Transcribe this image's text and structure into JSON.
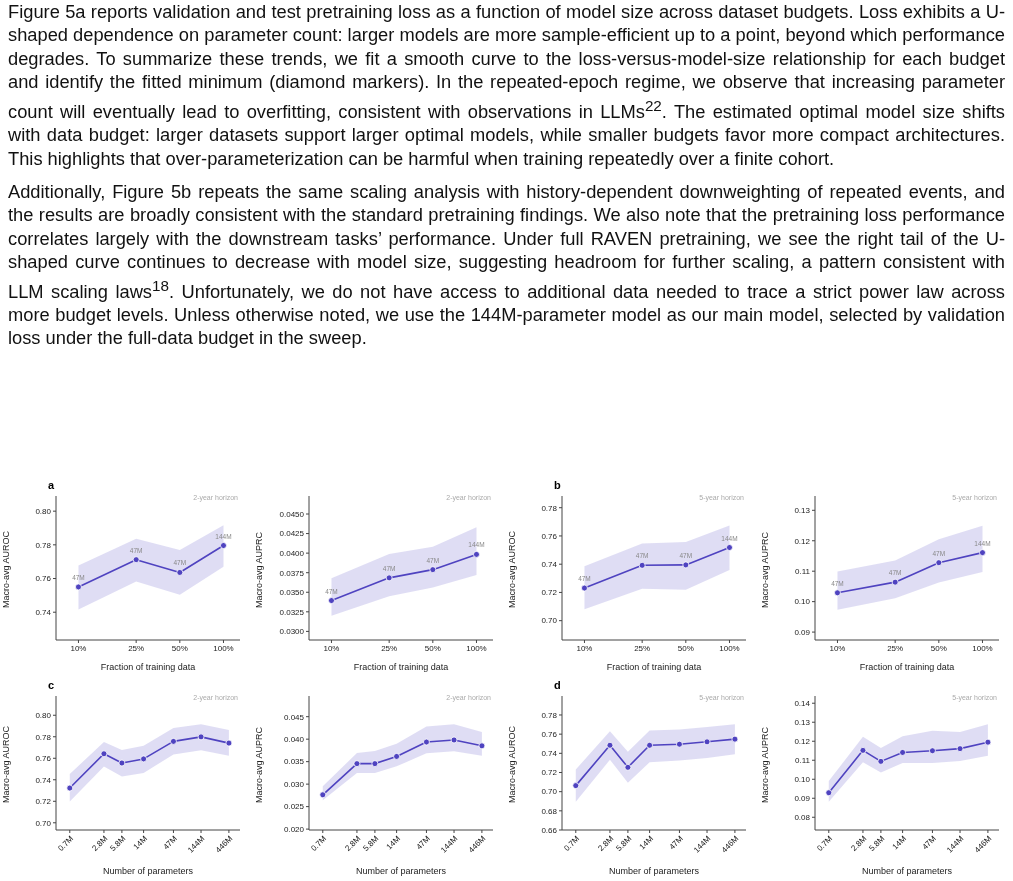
{
  "chart_data": [
    {
      "type": "other",
      "annotations": [
        "Figure 5a reports validation and test pretraining loss as a function of model size across dataset budgets. Loss exhibits a U-shaped dependence on parameter count: larger models are more sample-efficient up to a point, beyond which performance degrades. To summarize these trends, we fit a smooth curve to the loss-versus-model-size relationship for each budget and identify the fitted minimum (diamond markers). In the repeated-epoch regime, we observe that increasing parameter count will eventually lead to overfitting, consistent with observations in LLMs$^{22}$. The estimated optimal model size shifts with data budget: larger datasets support larger optimal models, while smaller budgets favor more compact architectures. This highlights that over-parameterization can be harmful when training repeatedly over a finite cohort.",
        "Additionally, Figure 5b repeats the same scaling analysis with history-dependent downweighting of repeated events, and the results are broadly consistent with the standard pretraining findings. We also note that the pretraining loss performance correlates largely with the downstream tasks’ performance. Under full RAVEN pretraining, we see the right tail of the U-shaped curve continues to decrease with model size, suggesting headroom for further scaling, a pattern consistent with LLM scaling laws$^{18}$. Unfortunately, we do not have access to additional data needed to trace a strict power law across more budget levels. Unless otherwise noted, we use the 144M-parameter model as our main model, selected by validation loss under the full-data budget in the sweep."
      ]
    },
    {
      "type": "line",
      "title": "a",
      "xlabel": "Fraction of training data",
      "ylabel": "Macro-avg AUROC",
      "log": "x",
      "marker": "circle",
      "line_style": "solid",
      "x": [
        10,
        25,
        50,
        100
      ],
      "xlim": [
        7,
        130
      ],
      "xticks": [
        {
          "value": 10,
          "label": "10%"
        },
        {
          "value": 25,
          "label": "25%"
        },
        {
          "value": 50,
          "label": "50%"
        },
        {
          "value": 100,
          "label": "100%"
        }
      ],
      "ylim": [
        0.7235,
        0.809
      ],
      "yticks": [
        {
          "value": 0.74,
          "label": "0.74"
        },
        {
          "value": 0.76,
          "label": "0.76"
        },
        {
          "value": 0.78,
          "label": "0.78"
        },
        {
          "value": 0.8,
          "label": "0.80"
        }
      ],
      "series": [
        {
          "color": "#4f43c0",
          "values": [
            0.755,
            0.7712,
            0.7636,
            0.7796
          ],
          "lower": [
            0.7416,
            0.7582,
            0.7504,
            0.767
          ],
          "upper": [
            0.7678,
            0.7836,
            0.777,
            0.7916
          ]
        }
      ],
      "annotations": [
        "2-year horizon",
        {
          "text": "47M",
          "x": 10,
          "y": 0.755
        },
        {
          "text": "47M",
          "x": 25,
          "y": 0.7712
        },
        {
          "text": "47M",
          "x": 50,
          "y": 0.7636
        },
        {
          "text": "144M",
          "x": 100,
          "y": 0.7796
        }
      ]
    },
    {
      "type": "line",
      "xlabel": "Fraction of training data",
      "ylabel": "Macro-avg AUPRC",
      "log": "x",
      "marker": "circle",
      "line_style": "solid",
      "x": [
        10,
        25,
        50,
        100
      ],
      "xlim": [
        7,
        130
      ],
      "xticks": [
        {
          "value": 10,
          "label": "10%"
        },
        {
          "value": 25,
          "label": "25%"
        },
        {
          "value": 50,
          "label": "50%"
        },
        {
          "value": 100,
          "label": "100%"
        }
      ],
      "ylim": [
        0.0289,
        0.0473
      ],
      "yticks": [
        {
          "value": 0.03,
          "label": "0.0300"
        },
        {
          "value": 0.0325,
          "label": "0.0325"
        },
        {
          "value": 0.035,
          "label": "0.0350"
        },
        {
          "value": 0.0375,
          "label": "0.0375"
        },
        {
          "value": 0.04,
          "label": "0.0400"
        },
        {
          "value": 0.0425,
          "label": "0.0425"
        },
        {
          "value": 0.045,
          "label": "0.0450"
        }
      ],
      "series": [
        {
          "color": "#4f43c0",
          "values": [
            0.03394,
            0.03684,
            0.03789,
            0.03984
          ],
          "lower": [
            0.032,
            0.0345,
            0.0356,
            0.0372
          ],
          "upper": [
            0.0368,
            0.0399,
            0.0408,
            0.0433
          ]
        }
      ],
      "annotations": [
        "2-year horizon",
        {
          "text": "47M",
          "x": 10,
          "y": 0.03394
        },
        {
          "text": "47M",
          "x": 25,
          "y": 0.03684
        },
        {
          "text": "47M",
          "x": 50,
          "y": 0.03789
        },
        {
          "text": "144M",
          "x": 100,
          "y": 0.03984
        }
      ]
    },
    {
      "type": "line",
      "title": "b",
      "xlabel": "Fraction of training data",
      "ylabel": "Macro-avg AUROC",
      "log": "x",
      "marker": "circle",
      "line_style": "solid",
      "x": [
        10,
        25,
        50,
        100
      ],
      "xlim": [
        7,
        130
      ],
      "xticks": [
        {
          "value": 10,
          "label": "10%"
        },
        {
          "value": 25,
          "label": "25%"
        },
        {
          "value": 50,
          "label": "50%"
        },
        {
          "value": 100,
          "label": "100%"
        }
      ],
      "ylim": [
        0.6863,
        0.7883
      ],
      "yticks": [
        {
          "value": 0.7,
          "label": "0.70"
        },
        {
          "value": 0.72,
          "label": "0.72"
        },
        {
          "value": 0.74,
          "label": "0.74"
        },
        {
          "value": 0.76,
          "label": "0.76"
        },
        {
          "value": 0.78,
          "label": "0.78"
        }
      ],
      "series": [
        {
          "color": "#4f43c0",
          "values": [
            0.7231,
            0.7392,
            0.7395,
            0.7518
          ],
          "lower": [
            0.708,
            0.7226,
            0.7219,
            0.7359
          ],
          "upper": [
            0.7385,
            0.7546,
            0.7558,
            0.7674
          ]
        }
      ],
      "annotations": [
        "5-year horizon",
        {
          "text": "47M",
          "x": 10,
          "y": 0.7231
        },
        {
          "text": "47M",
          "x": 25,
          "y": 0.7392
        },
        {
          "text": "47M",
          "x": 50,
          "y": 0.7395
        },
        {
          "text": "144M",
          "x": 100,
          "y": 0.7518
        }
      ]
    },
    {
      "type": "line",
      "xlabel": "Fraction of training data",
      "ylabel": "Macro-avg AUPRC",
      "log": "x",
      "marker": "circle",
      "line_style": "solid",
      "x": [
        10,
        25,
        50,
        100
      ],
      "xlim": [
        7,
        130
      ],
      "xticks": [
        {
          "value": 10,
          "label": "10%"
        },
        {
          "value": 25,
          "label": "25%"
        },
        {
          "value": 50,
          "label": "50%"
        },
        {
          "value": 100,
          "label": "100%"
        }
      ],
      "ylim": [
        0.0874,
        0.1347
      ],
      "yticks": [
        {
          "value": 0.09,
          "label": "0.09"
        },
        {
          "value": 0.1,
          "label": "0.10"
        },
        {
          "value": 0.11,
          "label": "0.11"
        },
        {
          "value": 0.12,
          "label": "0.12"
        },
        {
          "value": 0.13,
          "label": "0.13"
        }
      ],
      "series": [
        {
          "color": "#4f43c0",
          "values": [
            0.1029,
            0.1064,
            0.1128,
            0.1161
          ],
          "lower": [
            0.0973,
            0.1011,
            0.1063,
            0.1097
          ],
          "upper": [
            0.1099,
            0.1135,
            0.1205,
            0.1249
          ]
        }
      ],
      "annotations": [
        "5-year horizon",
        {
          "text": "47M",
          "x": 10,
          "y": 0.1029
        },
        {
          "text": "47M",
          "x": 25,
          "y": 0.1064
        },
        {
          "text": "47M",
          "x": 50,
          "y": 0.1128
        },
        {
          "text": "144M",
          "x": 100,
          "y": 0.1161
        }
      ]
    },
    {
      "type": "line",
      "title": "c",
      "xlabel": "Number of parameters",
      "ylabel": "Macro-avg AUROC",
      "log": "x",
      "marker": "circle",
      "line_style": "solid",
      "x": [
        0.7,
        2.8,
        5.8,
        14,
        47,
        144,
        446
      ],
      "xlim": [
        0.4,
        700
      ],
      "xticks": [
        {
          "value": 0.7,
          "label": "0.7M"
        },
        {
          "value": 2.8,
          "label": "2.8M"
        },
        {
          "value": 5.8,
          "label": "5.8M"
        },
        {
          "value": 14,
          "label": "14M"
        },
        {
          "value": 47,
          "label": "47M"
        },
        {
          "value": 144,
          "label": "144M"
        },
        {
          "value": 446,
          "label": "446M"
        }
      ],
      "ylim": [
        0.6933,
        0.8179
      ],
      "yticks": [
        {
          "value": 0.7,
          "label": "0.70"
        },
        {
          "value": 0.72,
          "label": "0.72"
        },
        {
          "value": 0.74,
          "label": "0.74"
        },
        {
          "value": 0.76,
          "label": "0.76"
        },
        {
          "value": 0.78,
          "label": "0.78"
        },
        {
          "value": 0.8,
          "label": "0.80"
        }
      ],
      "series": [
        {
          "color": "#4f43c0",
          "values": [
            0.7323,
            0.7642,
            0.7556,
            0.7594,
            0.7757,
            0.7799,
            0.7741
          ],
          "lower": [
            0.7198,
            0.7524,
            0.7431,
            0.7463,
            0.7636,
            0.7674,
            0.7623
          ],
          "upper": [
            0.7454,
            0.7751,
            0.7677,
            0.7716,
            0.7882,
            0.7917,
            0.7863
          ]
        }
      ],
      "annotations": [
        "2-year horizon"
      ]
    },
    {
      "type": "line",
      "xlabel": "Number of parameters",
      "ylabel": "Macro-avg AUPRC",
      "log": "x",
      "marker": "circle",
      "line_style": "solid",
      "x": [
        0.7,
        2.8,
        5.8,
        14,
        47,
        144,
        446
      ],
      "xlim": [
        0.4,
        700
      ],
      "xticks": [
        {
          "value": 0.7,
          "label": "0.7M"
        },
        {
          "value": 2.8,
          "label": "2.8M"
        },
        {
          "value": 5.8,
          "label": "5.8M"
        },
        {
          "value": 14,
          "label": "14M"
        },
        {
          "value": 47,
          "label": "47M"
        },
        {
          "value": 144,
          "label": "144M"
        },
        {
          "value": 446,
          "label": "446M"
        }
      ],
      "ylim": [
        0.0198,
        0.0496
      ],
      "yticks": [
        {
          "value": 0.02,
          "label": "0.020"
        },
        {
          "value": 0.025,
          "label": "0.025"
        },
        {
          "value": 0.03,
          "label": "0.030"
        },
        {
          "value": 0.035,
          "label": "0.035"
        },
        {
          "value": 0.04,
          "label": "0.040"
        },
        {
          "value": 0.045,
          "label": "0.045"
        }
      ],
      "series": [
        {
          "color": "#4f43c0",
          "values": [
            0.02763,
            0.03456,
            0.03456,
            0.03616,
            0.03936,
            0.03982,
            0.03852
          ],
          "lower": [
            0.02641,
            0.0325,
            0.0325,
            0.03395,
            0.03685,
            0.03731,
            0.03632
          ],
          "upper": [
            0.02953,
            0.03692,
            0.03738,
            0.03898,
            0.04279,
            0.04332,
            0.04157
          ]
        }
      ],
      "annotations": [
        "2-year horizon"
      ]
    },
    {
      "type": "line",
      "title": "d",
      "xlabel": "Number of parameters",
      "ylabel": "Macro-avg AUROC",
      "log": "x",
      "marker": "circle",
      "line_style": "solid",
      "x": [
        0.7,
        2.8,
        5.8,
        14,
        47,
        144,
        446
      ],
      "xlim": [
        0.4,
        700
      ],
      "xticks": [
        {
          "value": 0.7,
          "label": "0.7M"
        },
        {
          "value": 2.8,
          "label": "2.8M"
        },
        {
          "value": 5.8,
          "label": "5.8M"
        },
        {
          "value": 14,
          "label": "14M"
        },
        {
          "value": 47,
          "label": "47M"
        },
        {
          "value": 144,
          "label": "144M"
        },
        {
          "value": 446,
          "label": "446M"
        }
      ],
      "ylim": [
        0.66,
        0.7998
      ],
      "yticks": [
        {
          "value": 0.66,
          "label": "0.66"
        },
        {
          "value": 0.68,
          "label": "0.68"
        },
        {
          "value": 0.7,
          "label": "0.70"
        },
        {
          "value": 0.72,
          "label": "0.72"
        },
        {
          "value": 0.74,
          "label": "0.74"
        },
        {
          "value": 0.76,
          "label": "0.76"
        },
        {
          "value": 0.78,
          "label": "0.78"
        }
      ],
      "series": [
        {
          "color": "#4f43c0",
          "values": [
            0.7063,
            0.7484,
            0.7254,
            0.7484,
            0.7495,
            0.752,
            0.7548
          ],
          "lower": [
            0.6895,
            0.7333,
            0.7092,
            0.7308,
            0.7326,
            0.7351,
            0.739
          ],
          "upper": [
            0.7231,
            0.7631,
            0.7416,
            0.7638,
            0.7649,
            0.7674,
            0.7702
          ]
        }
      ],
      "annotations": [
        "5-year horizon"
      ]
    },
    {
      "type": "line",
      "xlabel": "Number of parameters",
      "ylabel": "Macro-avg AUPRC",
      "log": "x",
      "marker": "circle",
      "line_style": "solid",
      "x": [
        0.7,
        2.8,
        5.8,
        14,
        47,
        144,
        446
      ],
      "xlim": [
        0.4,
        700
      ],
      "xticks": [
        {
          "value": 0.7,
          "label": "0.7M"
        },
        {
          "value": 2.8,
          "label": "2.8M"
        },
        {
          "value": 5.8,
          "label": "5.8M"
        },
        {
          "value": 14,
          "label": "14M"
        },
        {
          "value": 47,
          "label": "47M"
        },
        {
          "value": 144,
          "label": "144M"
        },
        {
          "value": 446,
          "label": "446M"
        }
      ],
      "ylim": [
        0.0733,
        0.1438
      ],
      "yticks": [
        {
          "value": 0.08,
          "label": "0.08"
        },
        {
          "value": 0.09,
          "label": "0.09"
        },
        {
          "value": 0.1,
          "label": "0.10"
        },
        {
          "value": 0.11,
          "label": "0.11"
        },
        {
          "value": 0.12,
          "label": "0.12"
        },
        {
          "value": 0.13,
          "label": "0.13"
        },
        {
          "value": 0.14,
          "label": "0.14"
        }
      ],
      "series": [
        {
          "color": "#4f43c0",
          "values": [
            0.0929,
            0.1152,
            0.1094,
            0.1141,
            0.115,
            0.1161,
            0.1195
          ],
          "lower": [
            0.0882,
            0.1089,
            0.1036,
            0.1085,
            0.1085,
            0.1096,
            0.1123
          ],
          "upper": [
            0.0991,
            0.1223,
            0.1165,
            0.1226,
            0.1255,
            0.1248,
            0.129
          ]
        }
      ],
      "annotations": [
        "5-year horizon"
      ]
    }
  ]
}
